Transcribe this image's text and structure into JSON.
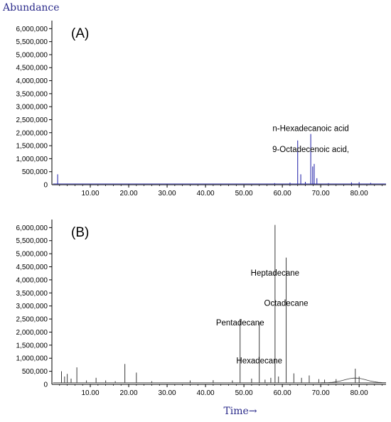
{
  "chart_data": [
    {
      "type": "line",
      "panel_label": "(A)",
      "ylabel": "Abundance",
      "xlabel": "",
      "xlim": [
        0,
        87
      ],
      "ylim": [
        0,
        6200000
      ],
      "x_ticks": [
        10,
        20,
        30,
        40,
        50,
        60,
        70,
        80
      ],
      "x_tick_labels": [
        "10.00",
        "20.00",
        "30.00",
        "40.00",
        "50.00",
        "60.00",
        "70.00",
        "80.00"
      ],
      "y_ticks": [
        500000,
        1000000,
        1500000,
        2000000,
        2500000,
        3000000,
        3500000,
        4000000,
        4500000,
        5000000,
        5500000,
        6000000
      ],
      "y_tick_labels": [
        "500,000",
        "1,000,000",
        "1,500,000",
        "2,000,000",
        "2,500,000",
        "3,000,000",
        "3,500,000",
        "4,000,000",
        "4,500,000",
        "5,000,000",
        "5,500,000",
        "6,000,000"
      ],
      "zero_label": "0",
      "baseline": 30000,
      "peaks": [
        [
          1.5,
          400000
        ],
        [
          4.0,
          40000
        ],
        [
          10.0,
          25000
        ],
        [
          20.0,
          20000
        ],
        [
          30.0,
          20000
        ],
        [
          40.0,
          25000
        ],
        [
          50.0,
          30000
        ],
        [
          58.0,
          60000
        ],
        [
          62.0,
          80000
        ],
        [
          64.0,
          1700000
        ],
        [
          64.8,
          400000
        ],
        [
          66.0,
          110000
        ],
        [
          67.4,
          1950000
        ],
        [
          67.9,
          700000
        ],
        [
          68.3,
          800000
        ],
        [
          69.0,
          250000
        ],
        [
          72.0,
          60000
        ],
        [
          78.0,
          90000
        ],
        [
          80.0,
          100000
        ],
        [
          83.0,
          70000
        ]
      ],
      "annotations": [
        {
          "text": "n-Hexadecanoic acid",
          "x": 67.4,
          "y": 1950000
        },
        {
          "text": "9-Octadecenoic acid,",
          "x": 67.4,
          "y": 1150000
        }
      ],
      "line_color": "#1a1aa6",
      "axis_color": "#000000",
      "ylabel_color": "#2a2a8a"
    },
    {
      "type": "line",
      "panel_label": "(B)",
      "ylabel": "",
      "xlabel": "Time→",
      "xlim": [
        0,
        87
      ],
      "ylim": [
        0,
        6200000
      ],
      "x_ticks": [
        10,
        20,
        30,
        40,
        50,
        60,
        70,
        80
      ],
      "x_tick_labels": [
        "10.00",
        "20.00",
        "30.00",
        "40.00",
        "50.00",
        "60.00",
        "70.00",
        "80.00"
      ],
      "y_ticks": [
        500000,
        1000000,
        1500000,
        2000000,
        2500000,
        3000000,
        3500000,
        4000000,
        4500000,
        5000000,
        5500000,
        6000000
      ],
      "y_tick_labels": [
        "500,000",
        "1,000,000",
        "1,500,000",
        "2,000,000",
        "2,500,000",
        "3,000,000",
        "3,500,000",
        "4,000,000",
        "4,500,000",
        "5,000,000",
        "5,500,000",
        "6,000,000"
      ],
      "zero_label": "0",
      "baseline": 60000,
      "peaks": [
        [
          2.5,
          500000
        ],
        [
          3.3,
          300000
        ],
        [
          4.0,
          400000
        ],
        [
          5.0,
          220000
        ],
        [
          6.5,
          650000
        ],
        [
          9.0,
          150000
        ],
        [
          11.5,
          250000
        ],
        [
          14.0,
          150000
        ],
        [
          16.5,
          120000
        ],
        [
          19.0,
          780000
        ],
        [
          22.0,
          450000
        ],
        [
          26.0,
          120000
        ],
        [
          36.0,
          150000
        ],
        [
          42.0,
          160000
        ],
        [
          47.0,
          150000
        ],
        [
          49.0,
          2500000
        ],
        [
          52.0,
          220000
        ],
        [
          54.0,
          2380000
        ],
        [
          55.5,
          180000
        ],
        [
          57.0,
          250000
        ],
        [
          58.1,
          6100000
        ],
        [
          59.0,
          300000
        ],
        [
          61.0,
          4850000
        ],
        [
          63.0,
          420000
        ],
        [
          65.0,
          250000
        ],
        [
          67.0,
          340000
        ],
        [
          69.5,
          200000
        ],
        [
          71.0,
          180000
        ],
        [
          74.0,
          200000
        ],
        [
          79.0,
          600000
        ],
        [
          80.0,
          300000
        ]
      ],
      "annotations": [
        {
          "text": "Heptadecane",
          "x": 58.1,
          "y": 4050000
        },
        {
          "text": "Octadecane",
          "x": 61.0,
          "y": 2900000
        },
        {
          "text": "Pentadecane",
          "x": 49.0,
          "y": 2150000
        },
        {
          "text": "Hexadecane",
          "x": 54.0,
          "y": 700000
        }
      ],
      "line_color": "#3a3a3a",
      "axis_color": "#000000",
      "xlabel_color": "#2a2a8a"
    }
  ]
}
